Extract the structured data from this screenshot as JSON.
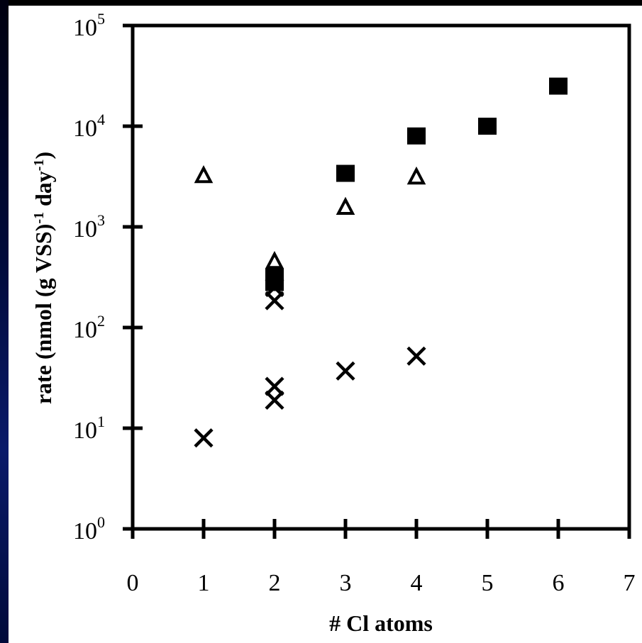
{
  "chart_data": {
    "type": "scatter",
    "xlabel": "# Cl atoms",
    "ylabel": "rate (nmol (g VSS)",
    "ylabel_sup1": "-1",
    "ylabel_mid": " day",
    "ylabel_sup2": "-1",
    "ylabel_end": ")",
    "xlim": [
      0,
      7
    ],
    "ylim": [
      1,
      100000
    ],
    "yscale": "log",
    "x_ticks": [
      "0",
      "1",
      "2",
      "3",
      "4",
      "5",
      "6",
      "7"
    ],
    "y_ticks": [
      {
        "base": "10",
        "exp": "0"
      },
      {
        "base": "10",
        "exp": "1"
      },
      {
        "base": "10",
        "exp": "2"
      },
      {
        "base": "10",
        "exp": "3"
      },
      {
        "base": "10",
        "exp": "4"
      },
      {
        "base": "10",
        "exp": "5"
      }
    ],
    "grid": false,
    "series": [
      {
        "marker": "square",
        "points": [
          {
            "x": 2,
            "y": 280
          },
          {
            "x": 2,
            "y": 320
          },
          {
            "x": 3,
            "y": 3400
          },
          {
            "x": 4,
            "y": 8000
          },
          {
            "x": 5,
            "y": 10000
          },
          {
            "x": 6,
            "y": 25000
          }
        ]
      },
      {
        "marker": "triangle-open",
        "points": [
          {
            "x": 1,
            "y": 3200
          },
          {
            "x": 2,
            "y": 450
          },
          {
            "x": 3,
            "y": 1550
          },
          {
            "x": 4,
            "y": 3100
          }
        ]
      },
      {
        "marker": "x",
        "points": [
          {
            "x": 1,
            "y": 8
          },
          {
            "x": 2,
            "y": 250
          },
          {
            "x": 2,
            "y": 185
          },
          {
            "x": 2,
            "y": 26
          },
          {
            "x": 2,
            "y": 19
          },
          {
            "x": 3,
            "y": 37
          },
          {
            "x": 4,
            "y": 52
          }
        ]
      }
    ]
  }
}
